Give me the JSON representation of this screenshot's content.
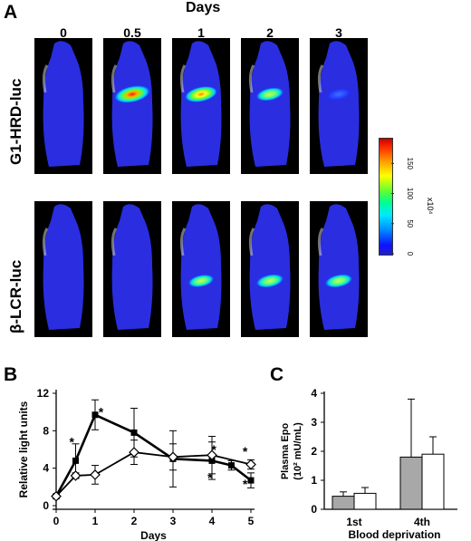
{
  "panel_a": {
    "letter": "A",
    "days_title": "Days",
    "days": [
      "0",
      "0.5",
      "1",
      "2",
      "3"
    ],
    "rows": [
      {
        "label": "G1-HRD-luc",
        "signal": [
          0,
          0.95,
          0.75,
          0.45,
          0.12
        ]
      },
      {
        "label": "β-LCR-luc",
        "signal": [
          0,
          0,
          0.35,
          0.45,
          0.45
        ]
      }
    ],
    "colorbar": {
      "ticks": [
        "0",
        "50",
        "100",
        "150"
      ],
      "unit": "x10⁴"
    }
  },
  "panel_b": {
    "letter": "B"
  },
  "panel_c": {
    "letter": "C"
  },
  "chart_data": [
    {
      "type": "line",
      "panel": "B",
      "xlabel": "Days",
      "ylabel": "Relative light units",
      "xlim": [
        0,
        5
      ],
      "ylim": [
        0,
        12
      ],
      "xticks": [
        "0",
        "1",
        "2",
        "3",
        "4",
        "5"
      ],
      "yticks": [
        "0",
        "4",
        "8",
        "12"
      ],
      "series": [
        {
          "marker": "filled-square",
          "x": [
            0,
            0.5,
            1,
            2,
            3,
            4,
            4.5,
            5
          ],
          "y": [
            1.0,
            4.8,
            9.7,
            7.8,
            5.0,
            4.8,
            4.3,
            2.7
          ],
          "err": [
            0.2,
            1.8,
            1.6,
            2.6,
            3.0,
            2.0,
            0.5,
            0.8
          ]
        },
        {
          "marker": "open-diamond",
          "x": [
            0,
            0.5,
            1,
            2,
            3,
            4,
            5
          ],
          "y": [
            1.0,
            3.2,
            3.3,
            5.7,
            5.2,
            5.4,
            4.4
          ],
          "err": [
            0.2,
            0.3,
            1.0,
            1.3,
            1.4,
            2.0,
            0.5
          ]
        }
      ],
      "annotations": [
        {
          "text": "*",
          "x": 0.4,
          "y": 6.8
        },
        {
          "text": "*",
          "x": 1.15,
          "y": 10.0
        },
        {
          "text": "*",
          "x": 4.05,
          "y": 6.0
        },
        {
          "text": "*",
          "x": 3.95,
          "y": 3.0
        },
        {
          "text": "*",
          "x": 4.85,
          "y": 5.8
        },
        {
          "text": "*",
          "x": 4.85,
          "y": 2.3
        }
      ]
    },
    {
      "type": "bar",
      "panel": "C",
      "ylabel": "Plasma Epo (10² mU/mL)",
      "xlabel": "Blood deprivation",
      "categories": [
        "1st",
        "4th"
      ],
      "ylim": [
        0,
        4
      ],
      "yticks": [
        "0",
        "1",
        "2",
        "3",
        "4"
      ],
      "series": [
        {
          "color": "#a8a8a8",
          "values": [
            0.45,
            1.8
          ],
          "err": [
            0.15,
            2.0
          ]
        },
        {
          "color": "#ffffff",
          "values": [
            0.55,
            1.9
          ],
          "err": [
            0.2,
            0.6
          ]
        }
      ]
    }
  ]
}
